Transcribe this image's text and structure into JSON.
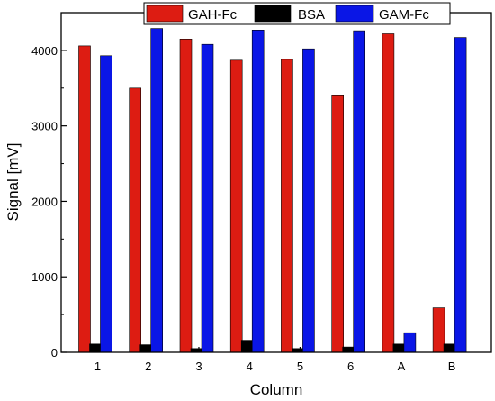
{
  "chart_data": {
    "type": "bar",
    "title": "",
    "xlabel": "Column",
    "ylabel": "Signal [mV]",
    "categories": [
      "1",
      "2",
      "3",
      "4",
      "5",
      "6",
      "A",
      "B"
    ],
    "ylim": [
      0,
      4500
    ],
    "yticks": [
      0,
      1000,
      2000,
      3000,
      4000
    ],
    "legend_position": "top-right",
    "grid": false,
    "series": [
      {
        "name": "GAH-Fc",
        "color": "#dd1c12",
        "values": [
          4060,
          3500,
          4150,
          3870,
          3880,
          3410,
          4220,
          590
        ]
      },
      {
        "name": "BSA",
        "color": "#000000",
        "values": [
          110,
          100,
          50,
          160,
          50,
          70,
          110,
          110
        ]
      },
      {
        "name": "GAM-Fc",
        "color": "#0a16e6",
        "values": [
          3930,
          4290,
          4080,
          4270,
          4020,
          4260,
          260,
          4170
        ]
      }
    ]
  }
}
